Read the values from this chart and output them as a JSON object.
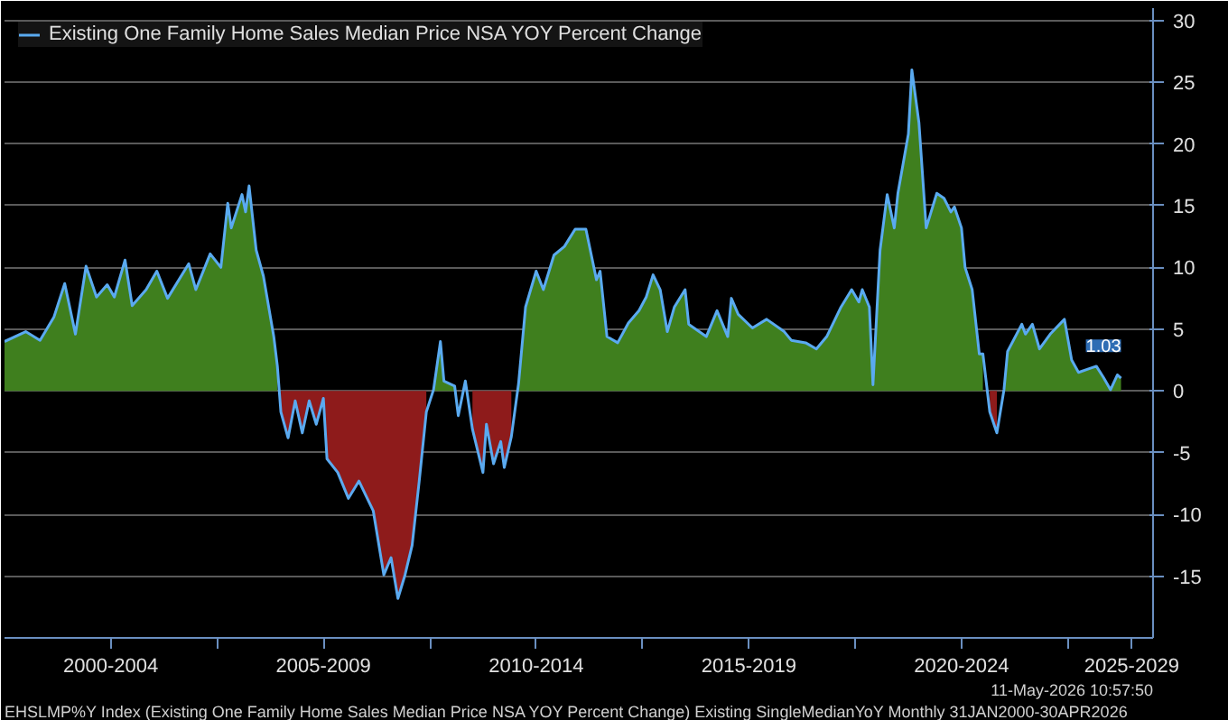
{
  "chart_data": {
    "type": "area",
    "x": [
      "2000-01",
      "2000-07",
      "2000-11",
      "2001-03",
      "2001-06",
      "2001-09",
      "2001-12",
      "2002-03",
      "2002-06",
      "2002-08",
      "2002-11",
      "2003-01",
      "2003-05",
      "2003-08",
      "2003-11",
      "2004-05",
      "2004-07",
      "2004-11",
      "2005-02",
      "2005-04",
      "2005-05",
      "2005-08",
      "2005-09",
      "2005-10",
      "2005-12",
      "2006-02",
      "2006-05",
      "2006-06",
      "2006-07",
      "2006-09",
      "2006-11",
      "2007-01",
      "2007-03",
      "2007-05",
      "2007-07",
      "2007-08",
      "2007-11",
      "2008-02",
      "2008-05",
      "2008-09",
      "2008-12",
      "2009-02",
      "2009-04",
      "2009-06",
      "2009-08",
      "2009-10",
      "2009-12",
      "2010-02",
      "2010-04",
      "2010-05",
      "2010-08",
      "2010-09",
      "2010-11",
      "2011-01",
      "2011-04",
      "2011-05",
      "2011-07",
      "2011-09",
      "2011-10",
      "2011-12",
      "2012-02",
      "2012-04",
      "2012-07",
      "2012-09",
      "2012-12",
      "2013-03",
      "2013-06",
      "2013-09",
      "2013-12",
      "2014-01",
      "2014-03",
      "2014-06",
      "2014-09",
      "2014-12",
      "2015-02",
      "2015-04",
      "2015-06",
      "2015-08",
      "2015-10",
      "2016-01",
      "2016-02",
      "2016-07",
      "2016-10",
      "2017-01",
      "2017-02",
      "2017-04",
      "2017-08",
      "2017-12",
      "2018-05",
      "2018-07",
      "2018-11",
      "2019-02",
      "2019-05",
      "2019-09",
      "2019-12",
      "2020-02",
      "2020-03",
      "2020-05",
      "2020-06",
      "2020-08",
      "2020-10",
      "2020-12",
      "2021-01",
      "2021-04",
      "2021-05",
      "2021-07",
      "2021-09",
      "2021-12",
      "2022-02",
      "2022-04",
      "2022-05",
      "2022-07",
      "2022-08",
      "2022-10",
      "2022-12",
      "2023-01",
      "2023-03",
      "2023-05",
      "2023-07",
      "2023-08",
      "2023-12",
      "2024-01",
      "2024-03",
      "2024-05",
      "2024-08",
      "2024-12",
      "2025-02",
      "2025-04",
      "2025-07",
      "2025-09",
      "2025-11",
      "2026-01",
      "2026-03",
      "2026-04"
    ],
    "series": [
      {
        "color": "#3f7f1e",
        "values": [
          4,
          4.8,
          4.1,
          6,
          8.7,
          4.6,
          10.1,
          7.6,
          8.6,
          7.6,
          10.6,
          6.9,
          8.2,
          9.7,
          7.5,
          10.3,
          8.2,
          11.1,
          10,
          15.2,
          13.2,
          15.9,
          14.5,
          16.6,
          11.4,
          9.3,
          4.4,
          2,
          null,
          null,
          null,
          null,
          null,
          null,
          null,
          null,
          null,
          null,
          null,
          null,
          null,
          null,
          null,
          null,
          null,
          null,
          null,
          0.1,
          4,
          0.8,
          0.4,
          null,
          null,
          null,
          null,
          null,
          null,
          null,
          null,
          null,
          0.6,
          6.8,
          9.7,
          8.2,
          11,
          11.7,
          13.1,
          13.1,
          9,
          9.7,
          4.4,
          3.9,
          5.5,
          6.5,
          7.6,
          9.4,
          8.2,
          4.8,
          6.8,
          8.2,
          5.4,
          4.4,
          6.5,
          4.4,
          7.5,
          6.2,
          5.1,
          5.8,
          4.8,
          4.1,
          3.9,
          3.4,
          4.4,
          6.8,
          8.2,
          7.2,
          8.2,
          6.8,
          0.5,
          11.4,
          15.9,
          13.2,
          16,
          20.8,
          26,
          21.7,
          13.2,
          16,
          15.6,
          14.5,
          14.9,
          13.2,
          10,
          8.2,
          3,
          3,
          null,
          null,
          0.1,
          3.2,
          5.4,
          4.6,
          5.4,
          3.4,
          4.6,
          5.8,
          2.5,
          1.5,
          1.8,
          2,
          1.1,
          0.1,
          1.3,
          1.03
        ]
      },
      {
        "color": "#8e1b1b",
        "values": [
          null,
          null,
          null,
          null,
          null,
          null,
          null,
          null,
          null,
          null,
          null,
          null,
          null,
          null,
          null,
          null,
          null,
          null,
          null,
          null,
          null,
          null,
          null,
          null,
          null,
          null,
          null,
          null,
          -1.7,
          -3.8,
          -0.8,
          -3.4,
          -0.8,
          -2.7,
          -0.6,
          -5.5,
          -6.6,
          -8.7,
          -7.3,
          -9.7,
          -14.9,
          -13.5,
          -16.8,
          -14.9,
          -12.5,
          -7.3,
          -1.7,
          null,
          null,
          null,
          null,
          null,
          null,
          -3.1,
          -6.6,
          -2.7,
          -5.9,
          -4.1,
          -6.2,
          -3.7,
          null,
          null,
          null,
          null,
          null,
          null,
          null,
          null,
          null,
          null,
          null,
          null,
          null,
          null,
          null,
          null,
          null,
          null,
          null,
          null,
          null,
          null,
          null,
          null,
          null,
          null,
          null,
          null,
          null,
          null,
          null,
          null,
          null,
          null,
          null,
          null,
          null,
          null,
          null,
          null,
          null,
          null,
          null,
          null,
          null,
          null,
          null,
          null,
          null,
          null,
          null,
          null,
          null,
          null,
          null,
          null,
          -1.7,
          -3.4,
          null,
          null,
          null,
          null,
          null,
          null,
          null,
          null,
          null,
          null,
          null,
          null,
          null,
          null,
          null,
          null
        ]
      },
      {
        "type": "line",
        "name": "Existing One Family Home Sales Median Price NSA YOY Percent Change",
        "color": "#5aaaf0",
        "values": [
          4,
          4.8,
          4.1,
          6,
          8.7,
          4.6,
          10.1,
          7.6,
          8.6,
          7.6,
          10.6,
          6.9,
          8.2,
          9.7,
          7.5,
          10.3,
          8.2,
          11.1,
          10,
          15.2,
          13.2,
          15.9,
          14.5,
          16.6,
          11.4,
          9.3,
          4.4,
          2,
          -1.7,
          -3.8,
          -0.8,
          -3.4,
          -0.8,
          -2.7,
          -0.6,
          -5.5,
          -6.6,
          -8.7,
          -7.3,
          -9.7,
          -14.9,
          -13.5,
          -16.8,
          -14.9,
          -12.5,
          -7.3,
          -1.7,
          0.1,
          4,
          0.8,
          0.4,
          -2,
          0.8,
          -3.1,
          -6.6,
          -2.7,
          -5.9,
          -4.1,
          -6.2,
          -3.7,
          0.6,
          6.8,
          9.7,
          8.2,
          11,
          11.7,
          13.1,
          13.1,
          9,
          9.7,
          4.4,
          3.9,
          5.5,
          6.5,
          7.6,
          9.4,
          8.2,
          4.8,
          6.8,
          8.2,
          5.4,
          4.4,
          6.5,
          4.4,
          7.5,
          6.2,
          5.1,
          5.8,
          4.8,
          4.1,
          3.9,
          3.4,
          4.4,
          6.8,
          8.2,
          7.2,
          8.2,
          6.8,
          0.5,
          11.4,
          15.9,
          13.2,
          16,
          20.8,
          26,
          21.7,
          13.2,
          16,
          15.6,
          14.5,
          14.9,
          13.2,
          10,
          8.2,
          3,
          3,
          -1.7,
          -3.4,
          0.1,
          3.2,
          5.4,
          4.6,
          5.4,
          3.4,
          4.6,
          5.8,
          2.5,
          1.5,
          1.8,
          2,
          1.1,
          0.1,
          1.3,
          1.03
        ],
        "value_labels": [
          null,
          null,
          null,
          null,
          null,
          null,
          null,
          null,
          null,
          null,
          null,
          null,
          null,
          null,
          null,
          null,
          null,
          null,
          null,
          null,
          null,
          null,
          null,
          null,
          null,
          null,
          null,
          null,
          null,
          null,
          null,
          null,
          null,
          null,
          null,
          null,
          null,
          null,
          null,
          null,
          null,
          null,
          null,
          null,
          null,
          null,
          null,
          null,
          null,
          null,
          null,
          null,
          null,
          null,
          null,
          null,
          null,
          null,
          null,
          null,
          null,
          null,
          null,
          null,
          null,
          null,
          null,
          null,
          null,
          null,
          null,
          null,
          null,
          null,
          null,
          null,
          null,
          null,
          null,
          null,
          null,
          null,
          null,
          null,
          null,
          null,
          null,
          null,
          null,
          null,
          null,
          null,
          null,
          null,
          null,
          null,
          null,
          null,
          null,
          null,
          null,
          null,
          null,
          null,
          null,
          null,
          null,
          null,
          null,
          null,
          null,
          null,
          null,
          null,
          null,
          null,
          null,
          null,
          null,
          null,
          null,
          null,
          null,
          null,
          null,
          null,
          null,
          null,
          null,
          null,
          null,
          null,
          null,
          "1.03"
        ]
      }
    ],
    "xlim": [
      "2000-01",
      "2027-01"
    ],
    "xticks": [
      {
        "value": "2002-07",
        "label": "2000-2004"
      },
      {
        "value": "2005-01",
        "label": null
      },
      {
        "value": "2007-07",
        "label": "2005-2009"
      },
      {
        "value": "2010-01",
        "label": null
      },
      {
        "value": "2012-07",
        "label": "2010-2014"
      },
      {
        "value": "2015-01",
        "label": null
      },
      {
        "value": "2017-07",
        "label": "2015-2019"
      },
      {
        "value": "2020-01",
        "label": null
      },
      {
        "value": "2022-07",
        "label": "2020-2024"
      },
      {
        "value": "2025-01",
        "label": null
      },
      {
        "value": "2026-07",
        "label": "2025-2029"
      }
    ],
    "ylim": [
      -20,
      31
    ],
    "yticks": [
      -15,
      -10,
      -5,
      0,
      5,
      10,
      15,
      20,
      25,
      30
    ],
    "grid": "y",
    "legend": "top left",
    "annotations": [
      "EHSLMP%Y Index (Existing One Family Home Sales Median Price NSA YOY Percent Change) Existing SingleMedianYoY Monthly 31JAN2000-30APR2026",
      "11-May-2026 10:57:50"
    ]
  }
}
